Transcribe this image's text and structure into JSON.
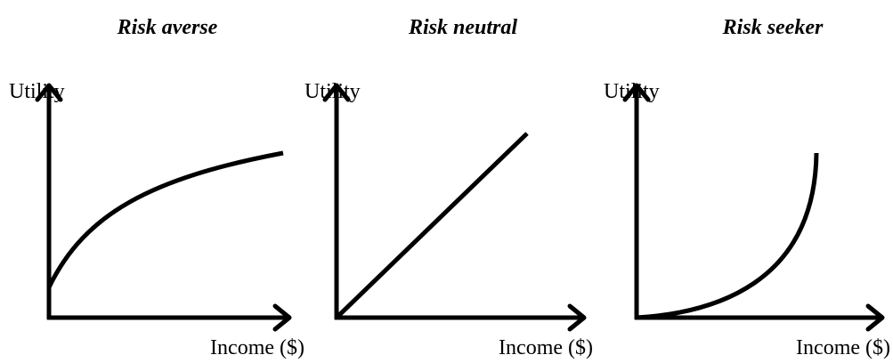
{
  "panels": [
    {
      "title": "Risk averse",
      "y_label": "Utility",
      "x_label": "Income ($)"
    },
    {
      "title": "Risk neutral",
      "y_label": "Utility",
      "x_label": "Income ($)"
    },
    {
      "title": "Risk seeker",
      "y_label": "Utility",
      "x_label": "Income ($)"
    }
  ]
}
